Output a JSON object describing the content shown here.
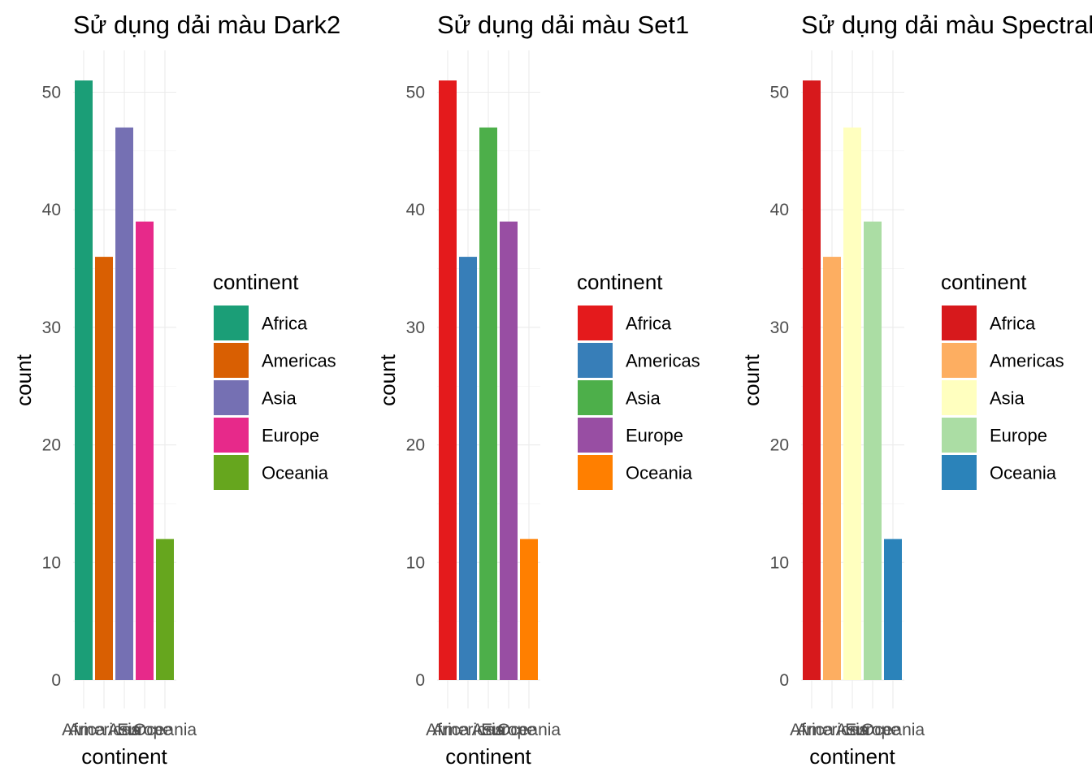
{
  "chart_data": [
    {
      "type": "bar",
      "title": "Sử dụng dải màu Dark2",
      "xlabel": "continent",
      "ylabel": "count",
      "categories": [
        "Africa",
        "Americas",
        "Asia",
        "Europe",
        "Oceania"
      ],
      "values": [
        51,
        36,
        47,
        39,
        12
      ],
      "colors": [
        "#1B9E77",
        "#D95F02",
        "#7570B3",
        "#E7298A",
        "#66A61E"
      ],
      "yticks": [
        0,
        10,
        20,
        30,
        40,
        50
      ],
      "ylim": [
        0,
        53.5
      ],
      "grid": true,
      "legend": {
        "title": "continent",
        "position": "right"
      }
    },
    {
      "type": "bar",
      "title": "Sử dụng dải màu Set1",
      "xlabel": "continent",
      "ylabel": "count",
      "categories": [
        "Africa",
        "Americas",
        "Asia",
        "Europe",
        "Oceania"
      ],
      "values": [
        51,
        36,
        47,
        39,
        12
      ],
      "colors": [
        "#E41A1C",
        "#377EB8",
        "#4DAF4A",
        "#984EA3",
        "#FF7F00"
      ],
      "yticks": [
        0,
        10,
        20,
        30,
        40,
        50
      ],
      "ylim": [
        0,
        53.5
      ],
      "grid": true,
      "legend": {
        "title": "continent",
        "position": "right"
      }
    },
    {
      "type": "bar",
      "title": "Sử dụng dải màu Spectral",
      "xlabel": "continent",
      "ylabel": "count",
      "categories": [
        "Africa",
        "Americas",
        "Asia",
        "Europe",
        "Oceania"
      ],
      "values": [
        51,
        36,
        47,
        39,
        12
      ],
      "colors": [
        "#D7191C",
        "#FDAE61",
        "#FFFFBF",
        "#ABDDA4",
        "#2B83BA"
      ],
      "yticks": [
        0,
        10,
        20,
        30,
        40,
        50
      ],
      "ylim": [
        0,
        53.5
      ],
      "grid": true,
      "legend": {
        "title": "continent",
        "position": "right"
      }
    }
  ]
}
